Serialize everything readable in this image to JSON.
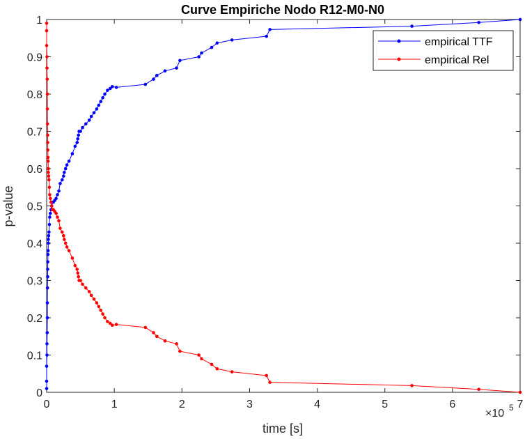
{
  "chart_data": {
    "type": "line",
    "title": "Curve Empiriche Nodo R12-M0-N0",
    "xlabel": "time [s]",
    "ylabel": "p-value",
    "x_exponent_label": "×10",
    "x_exponent_power": "5",
    "xlim": [
      0,
      700000
    ],
    "ylim": [
      0,
      1
    ],
    "x_tick_values": [
      0,
      100000,
      200000,
      300000,
      400000,
      500000,
      600000,
      700000
    ],
    "x_tick_labels": [
      "0",
      "1",
      "2",
      "3",
      "4",
      "5",
      "6",
      "7"
    ],
    "y_tick_values": [
      0,
      0.1,
      0.2,
      0.3,
      0.4,
      0.5,
      0.6,
      0.7,
      0.8,
      0.9,
      1
    ],
    "y_tick_labels": [
      "0",
      "0.1",
      "0.2",
      "0.3",
      "0.4",
      "0.5",
      "0.6",
      "0.7",
      "0.8",
      "0.9",
      "1"
    ],
    "grid": false,
    "legend_position": "top-right",
    "colors": {
      "ttf": "#0000ff",
      "rel": "#ff0000",
      "axes": "#262626"
    },
    "series": [
      {
        "name": "empirical TTF",
        "x": [
          0,
          0,
          0,
          500,
          500,
          800,
          1000,
          1000,
          1200,
          1500,
          1500,
          1800,
          2000,
          2200,
          2500,
          2500,
          3000,
          3500,
          4000,
          4500,
          5500,
          6500,
          7500,
          8500,
          10000,
          12000,
          14000,
          16000,
          18000,
          20000,
          23000,
          25000,
          26000,
          28000,
          30000,
          33000,
          38000,
          42000,
          45000,
          46000,
          47000,
          48000,
          50000,
          53000,
          58000,
          63000,
          66000,
          70000,
          74000,
          77000,
          80000,
          83000,
          86000,
          90000,
          94000,
          97000,
          103000,
          146000,
          158000,
          163000,
          163000,
          175000,
          192000,
          197000,
          225000,
          229000,
          244000,
          252000,
          274000,
          325000,
          330000,
          540000,
          639000,
          700000
        ],
        "y": [
          0.01,
          0.03,
          0.07,
          0.1,
          0.13,
          0.16,
          0.2,
          0.24,
          0.28,
          0.31,
          0.33,
          0.35,
          0.37,
          0.38,
          0.4,
          0.41,
          0.42,
          0.43,
          0.45,
          0.47,
          0.48,
          0.49,
          0.5,
          0.51,
          0.51,
          0.515,
          0.52,
          0.53,
          0.54,
          0.56,
          0.57,
          0.58,
          0.59,
          0.6,
          0.61,
          0.62,
          0.64,
          0.66,
          0.67,
          0.68,
          0.69,
          0.7,
          0.7,
          0.71,
          0.72,
          0.73,
          0.74,
          0.75,
          0.76,
          0.77,
          0.78,
          0.79,
          0.8,
          0.81,
          0.815,
          0.82,
          0.818,
          0.826,
          0.84,
          0.85,
          0.85,
          0.862,
          0.87,
          0.89,
          0.9,
          0.91,
          0.925,
          0.937,
          0.945,
          0.955,
          0.973,
          0.982,
          0.992,
          1.0
        ]
      },
      {
        "name": "empirical Rel",
        "x": [
          0,
          0,
          0,
          500,
          500,
          800,
          1000,
          1000,
          1200,
          1500,
          1500,
          1800,
          2000,
          2200,
          2500,
          2500,
          3000,
          3500,
          4000,
          4500,
          5500,
          6500,
          7500,
          8500,
          10000,
          12000,
          14000,
          16000,
          18000,
          20000,
          23000,
          25000,
          26000,
          28000,
          30000,
          33000,
          38000,
          42000,
          45000,
          46000,
          47000,
          48000,
          50000,
          53000,
          58000,
          63000,
          66000,
          70000,
          74000,
          77000,
          80000,
          83000,
          86000,
          90000,
          94000,
          97000,
          103000,
          146000,
          158000,
          163000,
          163000,
          175000,
          192000,
          197000,
          225000,
          229000,
          244000,
          252000,
          274000,
          325000,
          330000,
          540000,
          639000,
          700000
        ],
        "y": [
          0.99,
          0.97,
          0.93,
          0.9,
          0.87,
          0.84,
          0.8,
          0.76,
          0.72,
          0.69,
          0.67,
          0.65,
          0.63,
          0.62,
          0.6,
          0.59,
          0.58,
          0.57,
          0.55,
          0.53,
          0.52,
          0.51,
          0.5,
          0.49,
          0.49,
          0.485,
          0.48,
          0.47,
          0.46,
          0.44,
          0.43,
          0.42,
          0.41,
          0.4,
          0.39,
          0.38,
          0.36,
          0.34,
          0.33,
          0.32,
          0.31,
          0.3,
          0.3,
          0.29,
          0.28,
          0.27,
          0.26,
          0.25,
          0.24,
          0.23,
          0.22,
          0.21,
          0.2,
          0.19,
          0.185,
          0.18,
          0.182,
          0.174,
          0.16,
          0.15,
          0.15,
          0.138,
          0.13,
          0.11,
          0.1,
          0.09,
          0.075,
          0.063,
          0.055,
          0.045,
          0.027,
          0.018,
          0.008,
          0.0
        ]
      }
    ]
  }
}
